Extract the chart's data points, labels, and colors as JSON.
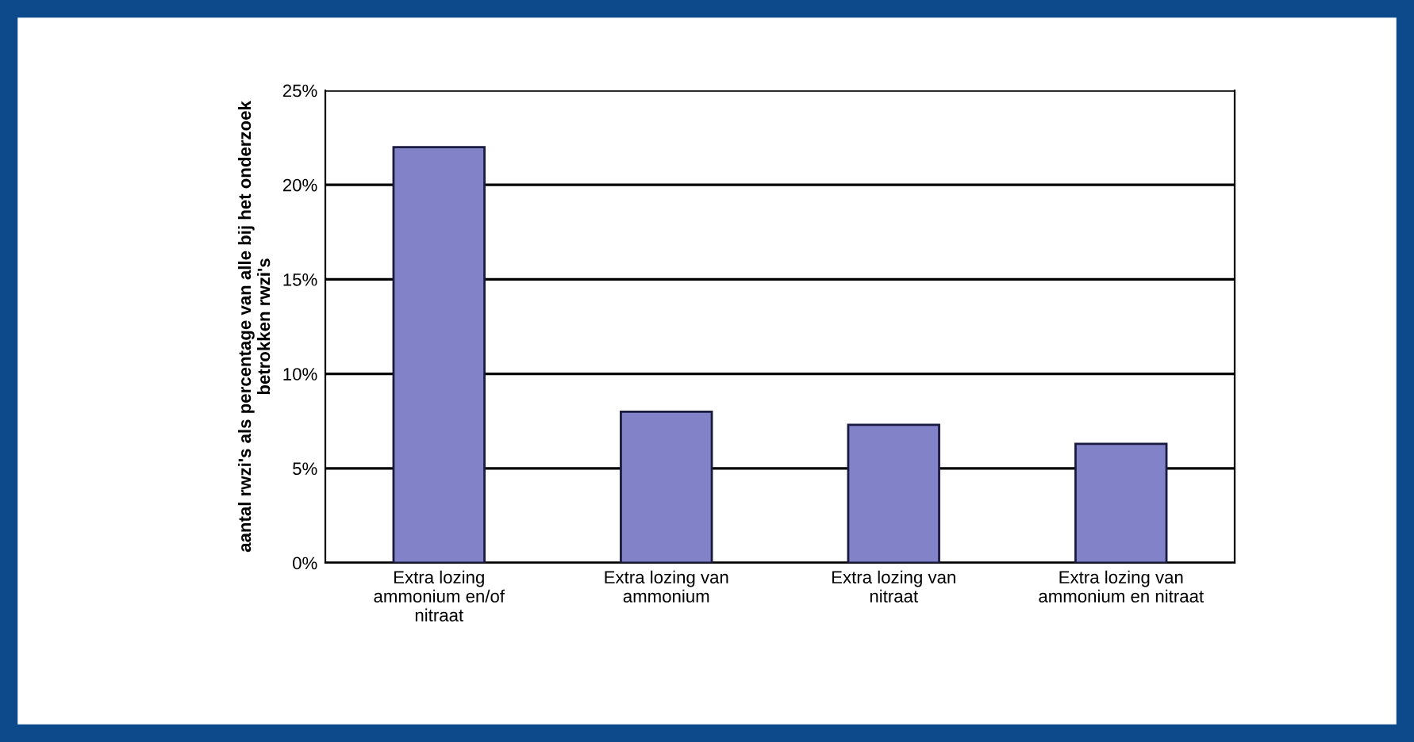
{
  "chart_data": {
    "type": "bar",
    "categories": [
      "Extra lozing ammonium en/of nitraat",
      "Extra lozing van ammonium",
      "Extra lozing van nitraat",
      "Extra lozing van ammonium en nitraat"
    ],
    "values": [
      22,
      8,
      7.3,
      6.3
    ],
    "color": "#8282c8",
    "ylabel": "aantal rwzi's als percentage van alle bij het onderzoek betrokken rwzi's",
    "ylim": [
      0,
      25
    ],
    "yticks": [
      {
        "value": 0,
        "label": "0%"
      },
      {
        "value": 5,
        "label": "5%"
      },
      {
        "value": 10,
        "label": "10%"
      },
      {
        "value": 15,
        "label": "15%"
      },
      {
        "value": 20,
        "label": "20%"
      },
      {
        "value": 25,
        "label": "25%"
      }
    ],
    "grid": "y",
    "legend": false
  }
}
